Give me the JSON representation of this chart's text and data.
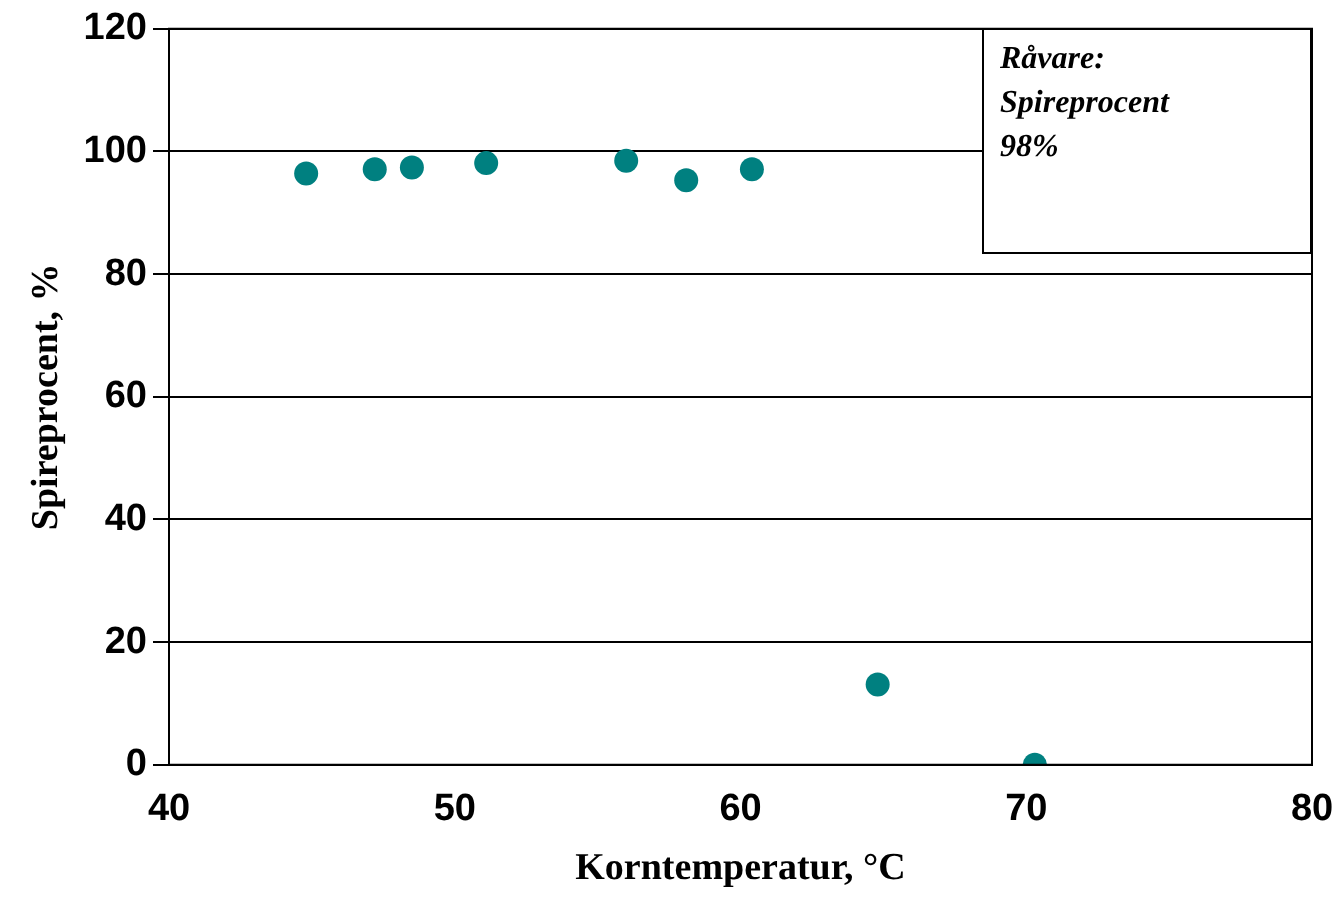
{
  "chart_data": {
    "type": "scatter",
    "xlabel": "Korntemperatur, °C",
    "ylabel": "Spireprocent, %",
    "x": [
      44.8,
      47.2,
      48.5,
      51.1,
      56.0,
      58.1,
      60.4,
      64.8,
      70.3
    ],
    "series": [
      {
        "color": "#008080",
        "values": [
          96.4,
          97.1,
          97.4,
          98.1,
          98.5,
          95.3,
          97.1,
          13.1,
          0
        ]
      }
    ],
    "xlim": [
      40,
      80
    ],
    "xticks": [
      40,
      50,
      60,
      70,
      80
    ],
    "ylim": [
      0,
      120
    ],
    "yticks": [
      0,
      20,
      40,
      60,
      80,
      100,
      120
    ],
    "grid": "y",
    "marker": "circle",
    "legend": false,
    "annotations": [
      "Råvare: Spireprocent 98%"
    ]
  }
}
